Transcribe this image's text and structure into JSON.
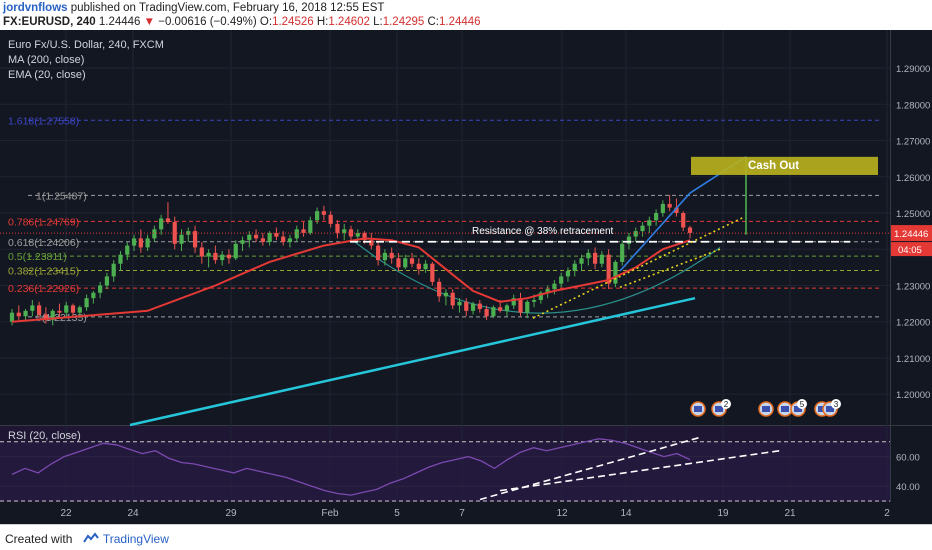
{
  "header": {
    "author": "jordvnflows",
    "published_text": "published on TradingView.com, February 16, 2018 12:55 EST",
    "symbol": "FX:EURUSD, 240",
    "last": "1.24446",
    "change_arrow": "▼",
    "change": "−0.00616 (−0.49%)",
    "o_label": "O:",
    "o_value": "1.24526",
    "h_label": "H:",
    "h_value": "1.24602",
    "l_label": "L:",
    "l_value": "1.24295",
    "c_label": "C:",
    "c_value": "1.24446"
  },
  "footer": {
    "created_with": "Created with",
    "brand": "TradingView"
  },
  "colors": {
    "background": "#131722",
    "rsi_background": "#1e1633",
    "bull": "#4caf50",
    "bear": "#ef5350",
    "ma200": "#26c6da",
    "ema20": "#e53935",
    "rsi_line": "#7b4ab0",
    "fib_blue": "#3d47c8",
    "fib_red": "#e53935",
    "fib_green": "#689f38",
    "fib_olive": "#9aa537",
    "fib_gray": "#9e9e9e",
    "cash_out_box": "#b7b01e"
  },
  "chart_data": [
    {
      "type": "candlestick",
      "title": "Euro Fx/U.S. Dollar, 240, FXCM",
      "indicators": [
        "MA (200, close)",
        "EMA (20, close)"
      ],
      "timeframe": "240",
      "ylim": [
        1.1915,
        1.3005
      ],
      "y_ticks": [
        1.2,
        1.21,
        1.22,
        1.23,
        1.24,
        1.25,
        1.26,
        1.27,
        1.28,
        1.29
      ],
      "x_tick_labels": [
        "22",
        "24",
        "29",
        "Feb",
        "5",
        "7",
        "12",
        "14",
        "19",
        "21",
        "2"
      ],
      "current_price": 1.24446,
      "countdown": "04:05",
      "fib_levels": [
        {
          "label": "0(1.22135)",
          "value": 1.22135,
          "color": "#9e9e9e"
        },
        {
          "label": "0.236(1.22926)",
          "value": 1.22926,
          "color": "#e53935"
        },
        {
          "label": "0.382(1.23415)",
          "value": 1.23415,
          "color": "#9aa537"
        },
        {
          "label": "0.5(1.23811)",
          "value": 1.23811,
          "color": "#689f38"
        },
        {
          "label": "0.618(1.24206)",
          "value": 1.24206,
          "color": "#9e9e9e"
        },
        {
          "label": "0.786(1.24769)",
          "value": 1.24769,
          "color": "#e53935"
        },
        {
          "label": "1(1.25487)",
          "value": 1.25487,
          "color": "#9e9e9e"
        },
        {
          "label": "1.618(1.27558)",
          "value": 1.27558,
          "color": "#3d47c8"
        }
      ],
      "annotations": {
        "resistance": "Resistance @ 38% retracement",
        "cash_out": "Cash Out",
        "cash_out_zone": [
          1.2605,
          1.2655
        ],
        "event_badges": [
          "2",
          "5",
          "3"
        ]
      },
      "ohlc": [
        [
          1.22,
          1.2235,
          1.219,
          1.2225
        ],
        [
          1.2225,
          1.2245,
          1.2205,
          1.2215
        ],
        [
          1.2215,
          1.2235,
          1.22,
          1.223
        ],
        [
          1.223,
          1.226,
          1.2215,
          1.2245
        ],
        [
          1.2245,
          1.2255,
          1.221,
          1.222
        ],
        [
          1.222,
          1.224,
          1.2195,
          1.2205
        ],
        [
          1.2205,
          1.2235,
          1.219,
          1.223
        ],
        [
          1.223,
          1.225,
          1.2215,
          1.2225
        ],
        [
          1.2225,
          1.2255,
          1.2215,
          1.2245
        ],
        [
          1.2245,
          1.225,
          1.2215,
          1.2225
        ],
        [
          1.2225,
          1.2245,
          1.221,
          1.224
        ],
        [
          1.224,
          1.2275,
          1.223,
          1.2265
        ],
        [
          1.2265,
          1.2285,
          1.225,
          1.228
        ],
        [
          1.228,
          1.231,
          1.2265,
          1.23
        ],
        [
          1.23,
          1.2335,
          1.229,
          1.2325
        ],
        [
          1.2325,
          1.237,
          1.231,
          1.236
        ],
        [
          1.236,
          1.2395,
          1.234,
          1.2385
        ],
        [
          1.2385,
          1.242,
          1.237,
          1.241
        ],
        [
          1.241,
          1.244,
          1.2395,
          1.243
        ],
        [
          1.243,
          1.2455,
          1.239,
          1.2405
        ],
        [
          1.2405,
          1.244,
          1.2395,
          1.243
        ],
        [
          1.243,
          1.2465,
          1.242,
          1.2455
        ],
        [
          1.2455,
          1.2495,
          1.244,
          1.2485
        ],
        [
          1.2485,
          1.253,
          1.247,
          1.2475
        ],
        [
          1.2475,
          1.249,
          1.24,
          1.2415
        ],
        [
          1.2415,
          1.2455,
          1.2395,
          1.244
        ],
        [
          1.244,
          1.246,
          1.242,
          1.245
        ],
        [
          1.245,
          1.2465,
          1.239,
          1.2405
        ],
        [
          1.2405,
          1.242,
          1.236,
          1.238
        ],
        [
          1.238,
          1.24,
          1.235,
          1.239
        ],
        [
          1.239,
          1.241,
          1.236,
          1.237
        ],
        [
          1.237,
          1.2395,
          1.2355,
          1.2385
        ],
        [
          1.2385,
          1.24,
          1.236,
          1.2375
        ],
        [
          1.2375,
          1.2425,
          1.237,
          1.2415
        ],
        [
          1.2415,
          1.2435,
          1.2395,
          1.2425
        ],
        [
          1.2425,
          1.245,
          1.2405,
          1.244
        ],
        [
          1.244,
          1.2455,
          1.242,
          1.243
        ],
        [
          1.243,
          1.2445,
          1.241,
          1.242
        ],
        [
          1.242,
          1.245,
          1.241,
          1.2445
        ],
        [
          1.2445,
          1.246,
          1.2425,
          1.2435
        ],
        [
          1.2435,
          1.245,
          1.241,
          1.242
        ],
        [
          1.242,
          1.244,
          1.2405,
          1.243
        ],
        [
          1.243,
          1.2465,
          1.242,
          1.2455
        ],
        [
          1.2455,
          1.2475,
          1.2435,
          1.2445
        ],
        [
          1.2445,
          1.249,
          1.244,
          1.248
        ],
        [
          1.248,
          1.2515,
          1.247,
          1.2505
        ],
        [
          1.2505,
          1.252,
          1.248,
          1.2495
        ],
        [
          1.2495,
          1.2505,
          1.246,
          1.247
        ],
        [
          1.247,
          1.248,
          1.243,
          1.2445
        ],
        [
          1.2445,
          1.247,
          1.2425,
          1.2455
        ],
        [
          1.2455,
          1.2465,
          1.2425,
          1.2435
        ],
        [
          1.2435,
          1.2455,
          1.242,
          1.2445
        ],
        [
          1.2445,
          1.245,
          1.2415,
          1.2425
        ],
        [
          1.2425,
          1.2445,
          1.24,
          1.241
        ],
        [
          1.241,
          1.242,
          1.2355,
          1.237
        ],
        [
          1.237,
          1.24,
          1.2355,
          1.239
        ],
        [
          1.239,
          1.2405,
          1.236,
          1.2375
        ],
        [
          1.2375,
          1.239,
          1.234,
          1.235
        ],
        [
          1.235,
          1.2385,
          1.2345,
          1.2375
        ],
        [
          1.2375,
          1.239,
          1.235,
          1.236
        ],
        [
          1.236,
          1.2375,
          1.233,
          1.2345
        ],
        [
          1.2345,
          1.237,
          1.2335,
          1.236
        ],
        [
          1.236,
          1.2365,
          1.23,
          1.231
        ],
        [
          1.231,
          1.232,
          1.2255,
          1.227
        ],
        [
          1.227,
          1.229,
          1.2245,
          1.228
        ],
        [
          1.228,
          1.229,
          1.2235,
          1.2245
        ],
        [
          1.2245,
          1.2265,
          1.2225,
          1.2255
        ],
        [
          1.2255,
          1.2265,
          1.2215,
          1.223
        ],
        [
          1.223,
          1.2255,
          1.222,
          1.225
        ],
        [
          1.225,
          1.226,
          1.2225,
          1.2235
        ],
        [
          1.2235,
          1.2245,
          1.2205,
          1.2215
        ],
        [
          1.2215,
          1.2245,
          1.221,
          1.224
        ],
        [
          1.224,
          1.226,
          1.2225,
          1.223
        ],
        [
          1.223,
          1.225,
          1.2215,
          1.2245
        ],
        [
          1.2245,
          1.2275,
          1.2235,
          1.2265
        ],
        [
          1.2265,
          1.228,
          1.2215,
          1.2225
        ],
        [
          1.2225,
          1.226,
          1.221,
          1.2255
        ],
        [
          1.2255,
          1.2275,
          1.224,
          1.226
        ],
        [
          1.226,
          1.2285,
          1.225,
          1.228
        ],
        [
          1.228,
          1.23,
          1.2265,
          1.229
        ],
        [
          1.229,
          1.2315,
          1.2275,
          1.2305
        ],
        [
          1.2305,
          1.2335,
          1.2295,
          1.2325
        ],
        [
          1.2325,
          1.235,
          1.231,
          1.234
        ],
        [
          1.234,
          1.237,
          1.2325,
          1.236
        ],
        [
          1.236,
          1.2385,
          1.234,
          1.2375
        ],
        [
          1.2375,
          1.24,
          1.2355,
          1.239
        ],
        [
          1.239,
          1.2405,
          1.2345,
          1.236
        ],
        [
          1.236,
          1.2395,
          1.235,
          1.2385
        ],
        [
          1.2385,
          1.24,
          1.229,
          1.2305
        ],
        [
          1.2305,
          1.237,
          1.2295,
          1.2365
        ],
        [
          1.2365,
          1.2425,
          1.2355,
          1.2415
        ],
        [
          1.2415,
          1.2445,
          1.24,
          1.2435
        ],
        [
          1.2435,
          1.246,
          1.242,
          1.245
        ],
        [
          1.245,
          1.2475,
          1.2435,
          1.2465
        ],
        [
          1.2465,
          1.249,
          1.2445,
          1.248
        ],
        [
          1.248,
          1.251,
          1.2465,
          1.25
        ],
        [
          1.25,
          1.2535,
          1.249,
          1.2525
        ],
        [
          1.2525,
          1.255,
          1.2505,
          1.2515
        ],
        [
          1.2515,
          1.254,
          1.249,
          1.25
        ],
        [
          1.25,
          1.2505,
          1.245,
          1.246
        ],
        [
          1.246,
          1.2465,
          1.243,
          1.2445
        ]
      ],
      "ma200": {
        "start": 1.1915,
        "end": 1.2265
      },
      "ema20": [
        [
          1.22,
          0
        ],
        [
          1.2215,
          10
        ],
        [
          1.223,
          20
        ],
        [
          1.23,
          30
        ],
        [
          1.2365,
          38
        ],
        [
          1.241,
          46
        ],
        [
          1.243,
          52
        ],
        [
          1.2425,
          56
        ],
        [
          1.2405,
          60
        ],
        [
          1.2345,
          64
        ],
        [
          1.2285,
          68
        ],
        [
          1.2255,
          72
        ],
        [
          1.2265,
          76
        ],
        [
          1.2285,
          80
        ],
        [
          1.23,
          84
        ],
        [
          1.2315,
          88
        ],
        [
          1.235,
          92
        ],
        [
          1.24,
          96
        ],
        [
          1.2425,
          100
        ]
      ]
    },
    {
      "type": "line",
      "title": "RSI (20, close)",
      "ylim": [
        30,
        80
      ],
      "y_ticks": [
        40.0,
        60.0
      ],
      "values": [
        48,
        52,
        49,
        55,
        60,
        63,
        66,
        69,
        68,
        65,
        62,
        64,
        59,
        56,
        55,
        53,
        51,
        49,
        52,
        50,
        48,
        46,
        43,
        40,
        37,
        35,
        34,
        36,
        38,
        42,
        45,
        49,
        53,
        56,
        58,
        60,
        57,
        52,
        58,
        63,
        66,
        64,
        66,
        68,
        70,
        72,
        71,
        69,
        66,
        63,
        60,
        62,
        58
      ]
    }
  ]
}
